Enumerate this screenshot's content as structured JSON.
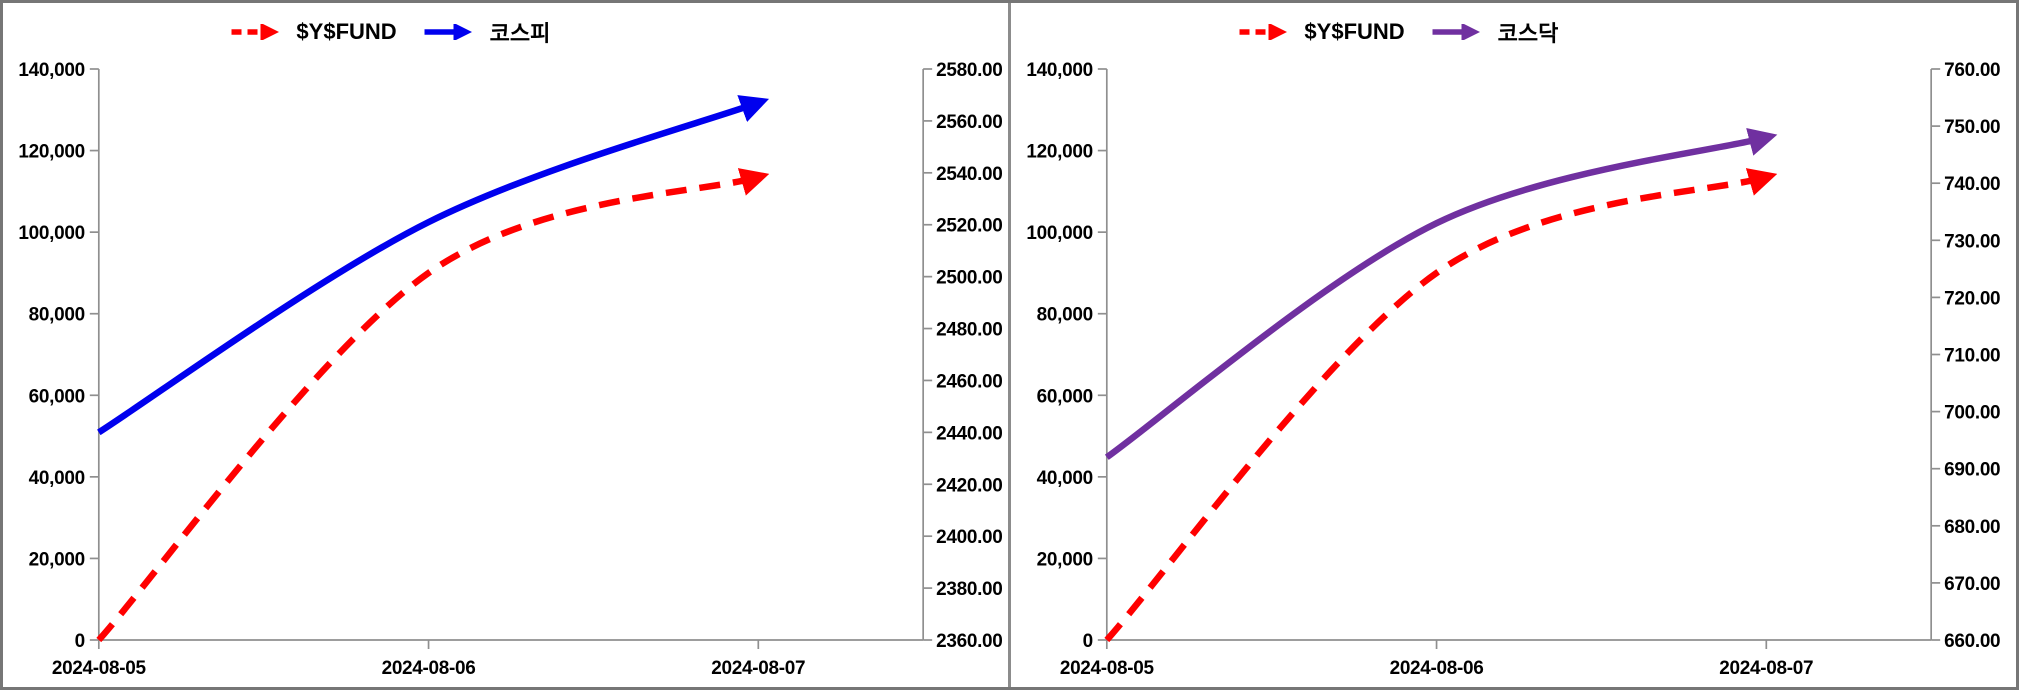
{
  "chart_data": [
    {
      "type": "line",
      "panel": "left",
      "title": "",
      "categories": [
        "2024-08-05",
        "2024-08-06",
        "2024-08-07"
      ],
      "series": [
        {
          "name": "$Y$FUND",
          "axis": "left",
          "color": "#FF0000",
          "style": "dashed",
          "arrow_end": true,
          "values": [
            0,
            90000,
            113500
          ]
        },
        {
          "name": "코스피",
          "axis": "right",
          "color": "#0000EE",
          "style": "solid",
          "arrow_end": true,
          "values": [
            2440,
            2521,
            2567
          ]
        }
      ],
      "left_axis": {
        "min": 0,
        "max": 140000,
        "step": 20000,
        "ticks": [
          "0",
          "20,000",
          "40,000",
          "60,000",
          "80,000",
          "100,000",
          "120,000",
          "140,000"
        ]
      },
      "right_axis": {
        "min": 2360,
        "max": 2580,
        "step": 20,
        "ticks": [
          "2360.00",
          "2380.00",
          "2400.00",
          "2420.00",
          "2440.00",
          "2460.00",
          "2480.00",
          "2500.00",
          "2520.00",
          "2540.00",
          "2560.00",
          "2580.00"
        ]
      },
      "legend_position": "top",
      "smooth": true,
      "grid": false
    },
    {
      "type": "line",
      "panel": "right",
      "title": "",
      "categories": [
        "2024-08-05",
        "2024-08-06",
        "2024-08-07"
      ],
      "series": [
        {
          "name": "$Y$FUND",
          "axis": "left",
          "color": "#FF0000",
          "style": "dashed",
          "arrow_end": true,
          "values": [
            0,
            90000,
            113500
          ]
        },
        {
          "name": "코스닥",
          "axis": "right",
          "color": "#7030A0",
          "style": "solid",
          "arrow_end": true,
          "values": [
            692,
            733,
            748
          ]
        }
      ],
      "left_axis": {
        "min": 0,
        "max": 140000,
        "step": 20000,
        "ticks": [
          "0",
          "20,000",
          "40,000",
          "60,000",
          "80,000",
          "100,000",
          "120,000",
          "140,000"
        ]
      },
      "right_axis": {
        "min": 660,
        "max": 760,
        "step": 10,
        "ticks": [
          "660.00",
          "670.00",
          "680.00",
          "690.00",
          "700.00",
          "710.00",
          "720.00",
          "730.00",
          "740.00",
          "750.00",
          "760.00"
        ]
      },
      "legend_position": "top",
      "smooth": true,
      "grid": false
    }
  ],
  "colors": {
    "fund_red": "#FF0000",
    "kospi_blue": "#0000EE",
    "kosdaq_purple": "#7030A0",
    "axis_gray": "#8f8f8f"
  }
}
